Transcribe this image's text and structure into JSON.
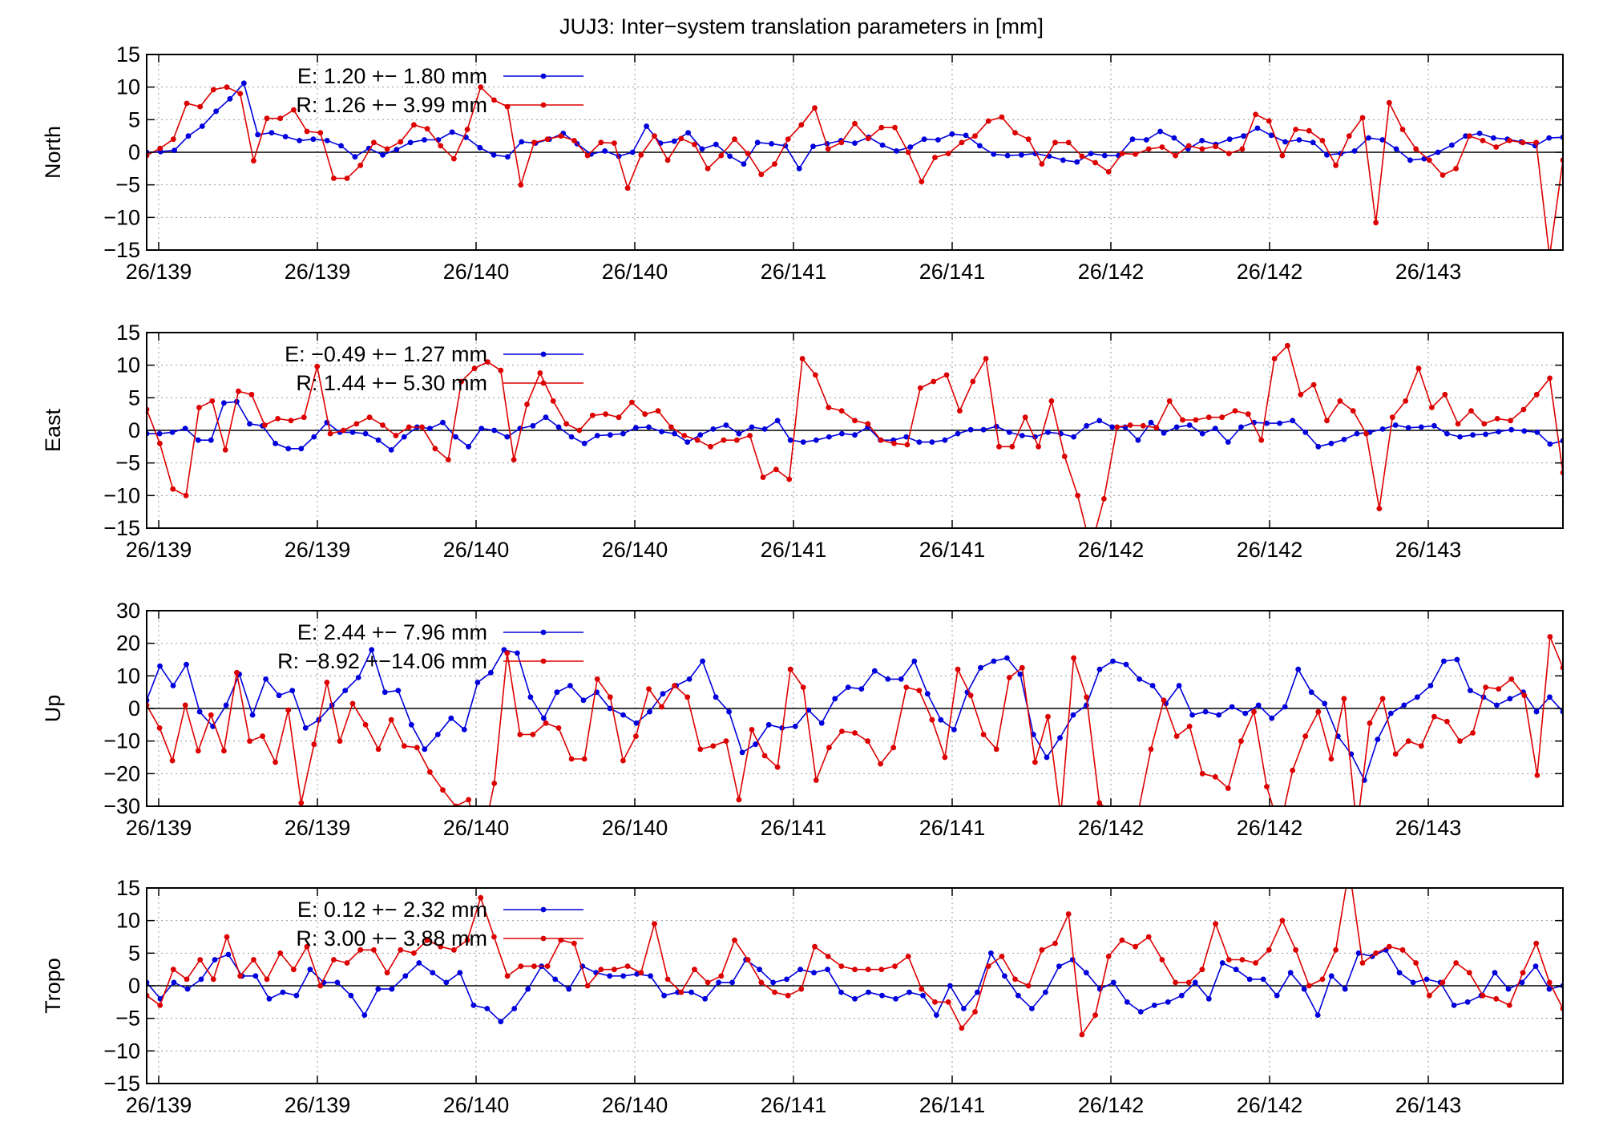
{
  "chart_data": {
    "type": "line",
    "title": "JUJ3: Inter−system translation parameters in [mm]",
    "x_tick_labels": [
      "26/139",
      "26/139",
      "26/140",
      "26/140",
      "26/141",
      "26/141",
      "26/142",
      "26/142",
      "26/143"
    ],
    "colors": {
      "E": "#0000dd",
      "R": "#dd0000"
    },
    "grid": true,
    "legend_position": "top-left",
    "panels": [
      {
        "ylabel": "North",
        "ylim": [
          -15,
          15
        ],
        "yticks": [
          15,
          10,
          5,
          0,
          -5,
          -10,
          -15
        ],
        "series": [
          {
            "name": "E",
            "legend": "E:   1.20 +− 1.80 mm",
            "values": [
              0.0,
              0.1,
              0.3,
              2.5,
              4.0,
              6.3,
              8.2,
              10.6,
              2.7,
              3.0,
              2.4,
              1.8,
              2.0,
              1.8,
              1.0,
              -0.7,
              0.6,
              -0.4,
              0.4,
              1.5,
              1.9,
              1.9,
              3.1,
              2.3,
              0.7,
              -0.4,
              -0.7,
              1.6,
              1.4,
              2.0,
              2.9,
              1.3,
              -0.3,
              0.2,
              -0.6,
              0.0,
              4.0,
              1.4,
              1.7,
              3.0,
              0.5,
              1.2,
              -0.6,
              -1.8,
              1.5,
              1.3,
              1.0,
              -2.5,
              0.9,
              1.3,
              1.8,
              1.4,
              2.3,
              1.1,
              0.2,
              0.8,
              2.0,
              1.9,
              2.8,
              2.6,
              1.0,
              -0.3,
              -0.5,
              -0.4,
              -0.2,
              -0.6,
              -1.2,
              -1.5,
              -0.2,
              -0.5,
              -0.5,
              2.0,
              1.9,
              3.2,
              2.2,
              0.5,
              1.8,
              1.2,
              2.0,
              2.5,
              3.7,
              2.6,
              1.6,
              1.9,
              1.5,
              -0.4,
              -0.2,
              0.2,
              2.2,
              1.9,
              0.5,
              -1.2,
              -1.0,
              0.0,
              1.1,
              2.5,
              2.9,
              2.2,
              2.0,
              1.6,
              1.0,
              2.2,
              2.3
            ]
          },
          {
            "name": "R",
            "legend": "R:   1.26 +− 3.99 mm",
            "values": [
              -0.5,
              0.6,
              2.0,
              7.5,
              7.0,
              9.6,
              10.0,
              9.0,
              -1.3,
              5.2,
              5.2,
              6.5,
              3.2,
              3.0,
              -4.0,
              -4.0,
              -2.0,
              1.5,
              0.5,
              1.6,
              4.2,
              3.6,
              1.0,
              -1.0,
              3.5,
              10.0,
              8.0,
              7.0,
              -5.0,
              1.5,
              2.0,
              2.5,
              1.8,
              -0.5,
              1.5,
              1.4,
              -5.5,
              -0.4,
              2.5,
              -1.2,
              2.1,
              1.2,
              -2.5,
              -0.5,
              2.0,
              -0.2,
              -3.4,
              -1.8,
              2.0,
              4.2,
              6.8,
              0.5,
              1.5,
              4.4,
              2.1,
              3.8,
              3.8,
              0.0,
              -4.5,
              -0.8,
              -0.2,
              1.5,
              2.5,
              4.8,
              5.4,
              3.0,
              2.0,
              -1.8,
              1.5,
              1.5,
              -0.6,
              -1.6,
              -3.0,
              -0.2,
              -0.3,
              0.5,
              0.8,
              -0.5,
              1.0,
              0.5,
              0.9,
              -0.2,
              0.5,
              5.8,
              4.8,
              -0.5,
              3.5,
              3.3,
              1.8,
              -2.0,
              2.5,
              5.3,
              -10.8,
              7.6,
              3.5,
              0.5,
              -1.2,
              -3.5,
              -2.5,
              2.5,
              1.8,
              0.8,
              1.8,
              1.5,
              1.5,
              -16.0,
              -1.2
            ]
          }
        ]
      },
      {
        "ylabel": "East",
        "ylim": [
          -15,
          15
        ],
        "yticks": [
          15,
          10,
          5,
          0,
          -5,
          -10,
          -15
        ],
        "series": [
          {
            "name": "E",
            "legend": "E:  −0.49 +− 1.27 mm",
            "values": [
              -0.5,
              -0.5,
              -0.3,
              0.3,
              -1.5,
              -1.5,
              4.2,
              4.4,
              1.0,
              0.7,
              -2.0,
              -2.8,
              -2.8,
              -1.0,
              1.2,
              -0.3,
              -0.3,
              -0.5,
              -1.5,
              -3.0,
              -1.0,
              0.5,
              0.3,
              1.2,
              -1.0,
              -2.5,
              0.3,
              0.0,
              -1.0,
              0.3,
              0.7,
              2.0,
              0.5,
              -1.0,
              -2.0,
              -0.8,
              -0.7,
              -0.5,
              0.4,
              0.5,
              -0.2,
              -0.5,
              -1.8,
              -0.7,
              0.2,
              0.8,
              -0.5,
              0.5,
              0.2,
              1.5,
              -1.5,
              -1.8,
              -1.5,
              -1.0,
              -0.5,
              -0.7,
              0.5,
              -1.5,
              -1.5,
              -1.0,
              -1.8,
              -1.8,
              -1.5,
              -0.5,
              0.1,
              0.1,
              0.6,
              -0.3,
              -0.8,
              -1.0,
              -0.3,
              -0.5,
              -1.0,
              0.7,
              1.5,
              0.5,
              0.5,
              -1.5,
              1.2,
              -0.4,
              0.5,
              0.8,
              -0.5,
              0.3,
              -1.8,
              0.5,
              1.2,
              1.1,
              1.1,
              1.5,
              -0.3,
              -2.5,
              -2.0,
              -1.4,
              -0.5,
              -0.3,
              0.2,
              0.8,
              0.4,
              0.5,
              0.7,
              -0.5,
              -1.0,
              -0.7,
              -0.6,
              -0.2,
              0.1,
              -0.1,
              -0.3,
              -2.1,
              -1.6
            ]
          },
          {
            "name": "R",
            "legend": "R:   1.44 +− 5.30 mm",
            "values": [
              3.2,
              -2.0,
              -9.0,
              -10.0,
              3.5,
              4.5,
              -3.0,
              6.0,
              5.5,
              0.8,
              1.8,
              1.5,
              2.0,
              9.8,
              -0.5,
              0.0,
              1.0,
              2.0,
              0.8,
              -0.8,
              0.5,
              0.5,
              -2.8,
              -4.5,
              7.5,
              9.5,
              10.5,
              9.2,
              -4.5,
              4.0,
              8.8,
              4.5,
              1.0,
              0.0,
              2.3,
              2.5,
              2.0,
              4.3,
              2.5,
              3.0,
              0.5,
              -0.8,
              -1.5,
              -2.5,
              -1.5,
              -1.5,
              -0.8,
              -7.2,
              -6.0,
              -7.5,
              11.0,
              8.5,
              3.5,
              3.0,
              1.5,
              1.0,
              -1.5,
              -2.0,
              -2.2,
              6.5,
              7.5,
              8.5,
              3.0,
              7.5,
              11.0,
              -2.5,
              -2.5,
              2.0,
              -2.5,
              4.5,
              -4.0,
              -10.0,
              -18.0,
              -10.5,
              0.5,
              0.8,
              0.7,
              0.4,
              4.5,
              1.6,
              1.6,
              2.0,
              2.0,
              3.0,
              2.5,
              -1.5,
              11.0,
              13.0,
              5.5,
              7.0,
              1.5,
              4.5,
              3.0,
              -0.5,
              -12.0,
              2.0,
              4.5,
              9.5,
              3.5,
              5.5,
              1.0,
              3.0,
              1.0,
              1.8,
              1.5,
              3.2,
              5.5,
              8.0,
              -6.5
            ]
          }
        ]
      },
      {
        "ylabel": "Up",
        "ylim": [
          -30,
          30
        ],
        "yticks": [
          30,
          20,
          10,
          0,
          -10,
          -20,
          -30
        ],
        "series": [
          {
            "name": "E",
            "legend": "E:   2.44 +− 7.96 mm",
            "values": [
              2.5,
              13.0,
              7.0,
              13.5,
              -1.0,
              -5.5,
              1.0,
              10.5,
              -2.0,
              9.0,
              4.0,
              5.5,
              -6.0,
              -3.5,
              1.0,
              5.5,
              9.5,
              18.0,
              5.0,
              5.5,
              -5.0,
              -12.5,
              -8.0,
              -3.0,
              -6.5,
              8.0,
              11.0,
              18.0,
              17.0,
              3.5,
              -3.0,
              5.0,
              7.0,
              2.5,
              5.0,
              0.0,
              -2.0,
              -4.5,
              -1.0,
              4.5,
              7.0,
              9.0,
              14.5,
              3.5,
              -1.0,
              -13.5,
              -11.0,
              -5.0,
              -6.0,
              -5.5,
              -0.5,
              -4.5,
              3.0,
              6.5,
              6.0,
              11.5,
              9.0,
              9.0,
              14.5,
              4.5,
              -3.5,
              -6.5,
              5.0,
              12.5,
              14.5,
              15.5,
              10.5,
              -8.0,
              -15.0,
              -9.0,
              -2.0,
              1.0,
              12.0,
              14.5,
              13.5,
              9.0,
              7.0,
              1.5,
              7.0,
              -2.0,
              -1.0,
              -2.0,
              0.5,
              -1.5,
              1.0,
              -3.0,
              0.5,
              12.0,
              5.0,
              1.5,
              -8.5,
              -14.0,
              -22.0,
              -9.5,
              -1.5,
              1.0,
              3.5,
              7.0,
              14.5,
              15.0,
              5.5,
              3.5,
              1.0,
              3.0,
              5.0,
              -1.0,
              3.5,
              -1.0
            ]
          },
          {
            "name": "R",
            "legend": "R:  −8.92 +−14.06 mm",
            "values": [
              1.0,
              -6.0,
              -16.0,
              1.0,
              -13.0,
              -2.0,
              -13.0,
              11.0,
              -10.0,
              -8.5,
              -16.5,
              -0.5,
              -29.0,
              -11.0,
              8.0,
              -10.0,
              1.5,
              -5.0,
              -12.5,
              -3.5,
              -11.5,
              -12.0,
              -19.5,
              -25.0,
              -30.0,
              -28.0,
              -42.0,
              -23.0,
              17.0,
              -8.0,
              -8.0,
              -4.5,
              -6.0,
              -15.5,
              -15.5,
              9.0,
              3.5,
              -16.0,
              -8.5,
              6.0,
              0.5,
              7.0,
              3.5,
              -12.5,
              -11.5,
              -10.0,
              -28.0,
              -6.5,
              -14.5,
              -18.0,
              12.0,
              6.5,
              -22.0,
              -12.0,
              -7.0,
              -7.5,
              -10.0,
              -17.0,
              -12.0,
              6.5,
              5.5,
              -3.5,
              -15.0,
              12.0,
              4.0,
              -8.0,
              -12.5,
              9.5,
              12.5,
              -16.5,
              -2.5,
              -33.0,
              15.5,
              3.5,
              -29.0,
              -32.0,
              -36.0,
              -32.0,
              -12.5,
              2.5,
              -8.5,
              -5.5,
              -20.0,
              -21.0,
              -24.5,
              -10.0,
              -1.0,
              -24.0,
              -37.0,
              -19.0,
              -8.5,
              -1.0,
              -15.5,
              3.0,
              -37.0,
              -4.5,
              3.0,
              -14.0,
              -10.0,
              -11.5,
              -2.5,
              -4.0,
              -10.0,
              -7.5,
              6.5,
              6.0,
              9.0,
              4.0,
              -20.5,
              22.0,
              12.5
            ]
          }
        ]
      },
      {
        "ylabel": "Tropo",
        "ylim": [
          -15,
          15
        ],
        "yticks": [
          15,
          10,
          5,
          0,
          -5,
          -10,
          -15
        ],
        "series": [
          {
            "name": "E",
            "legend": "E:   0.12 +− 2.32 mm",
            "values": [
              0.5,
              -2.0,
              0.5,
              -0.5,
              1.0,
              4.0,
              4.8,
              1.5,
              1.5,
              -2.0,
              -1.0,
              -1.5,
              2.5,
              0.5,
              0.5,
              -1.5,
              -4.5,
              -0.5,
              -0.5,
              1.5,
              3.5,
              2.0,
              0.5,
              2.0,
              -3.0,
              -3.5,
              -5.5,
              -3.5,
              -0.5,
              3.0,
              1.0,
              -0.5,
              3.0,
              2.0,
              1.5,
              1.5,
              1.8,
              1.5,
              -1.5,
              -1.0,
              -1.0,
              -2.0,
              0.5,
              0.5,
              4.0,
              2.5,
              0.5,
              1.0,
              2.5,
              2.0,
              2.5,
              -1.0,
              -2.0,
              -1.0,
              -1.5,
              -2.0,
              -1.0,
              -1.5,
              -4.5,
              0.0,
              -3.5,
              -1.0,
              5.0,
              1.5,
              -1.5,
              -3.5,
              -1.0,
              3.0,
              4.0,
              2.0,
              -0.5,
              0.5,
              -2.5,
              -4.0,
              -3.0,
              -2.5,
              -1.5,
              0.5,
              -2.0,
              3.5,
              2.5,
              1.0,
              1.0,
              -1.5,
              2.0,
              -0.5,
              -4.5,
              1.5,
              -0.5,
              5.0,
              4.5,
              5.5,
              2.0,
              0.5,
              1.0,
              0.5,
              -3.0,
              -2.5,
              -1.5,
              2.0,
              -0.5,
              0.5,
              3.0,
              -0.5,
              0.0
            ]
          },
          {
            "name": "R",
            "legend": "R:   3.00 +− 3.88 mm",
            "values": [
              -1.5,
              -3.0,
              2.5,
              1.0,
              4.0,
              1.0,
              7.5,
              1.5,
              4.0,
              1.0,
              5.0,
              2.5,
              6.0,
              0.0,
              4.0,
              3.5,
              5.5,
              5.5,
              2.0,
              5.5,
              5.0,
              7.0,
              6.0,
              5.5,
              7.0,
              13.5,
              7.5,
              1.5,
              3.0,
              3.0,
              3.0,
              7.0,
              6.5,
              0.0,
              2.5,
              2.5,
              3.0,
              2.0,
              9.5,
              1.0,
              -1.0,
              2.5,
              0.5,
              1.5,
              7.0,
              4.0,
              0.5,
              -1.0,
              -1.5,
              -0.5,
              6.0,
              4.5,
              3.0,
              2.5,
              2.5,
              2.5,
              3.0,
              4.5,
              -0.5,
              -2.5,
              -2.5,
              -6.5,
              -4.0,
              3.0,
              4.5,
              1.0,
              0.0,
              5.5,
              6.5,
              11.0,
              -7.5,
              -4.5,
              4.5,
              7.0,
              6.0,
              7.5,
              4.0,
              0.5,
              0.5,
              2.5,
              9.5,
              4.0,
              4.0,
              3.5,
              5.5,
              10.0,
              5.5,
              0.0,
              1.0,
              5.5,
              18.0,
              3.5,
              5.0,
              6.0,
              5.5,
              3.5,
              -1.5,
              0.5,
              3.5,
              2.0,
              -1.5,
              -2.0,
              -3.0,
              2.0,
              6.5,
              0.5,
              -3.5
            ]
          }
        ]
      }
    ]
  }
}
